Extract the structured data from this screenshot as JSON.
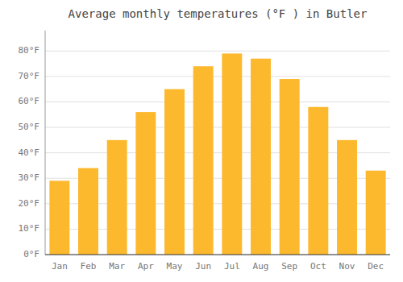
{
  "chart_data": {
    "type": "bar",
    "title": "Average monthly temperatures (°F ) in Butler",
    "categories": [
      "Jan",
      "Feb",
      "Mar",
      "Apr",
      "May",
      "Jun",
      "Jul",
      "Aug",
      "Sep",
      "Oct",
      "Nov",
      "Dec"
    ],
    "values": [
      29,
      34,
      45,
      56,
      65,
      74,
      79,
      77,
      69,
      58,
      45,
      33
    ],
    "color": "#FDB92E",
    "ylim": [
      0,
      88
    ],
    "yticks": [
      {
        "value": 0,
        "label": "0°F"
      },
      {
        "value": 10,
        "label": "10°F"
      },
      {
        "value": 20,
        "label": "20°F"
      },
      {
        "value": 30,
        "label": "30°F"
      },
      {
        "value": 40,
        "label": "40°F"
      },
      {
        "value": 50,
        "label": "50°F"
      },
      {
        "value": 60,
        "label": "60°F"
      },
      {
        "value": 70,
        "label": "70°F"
      },
      {
        "value": 80,
        "label": "80°F"
      }
    ],
    "grid": true
  }
}
